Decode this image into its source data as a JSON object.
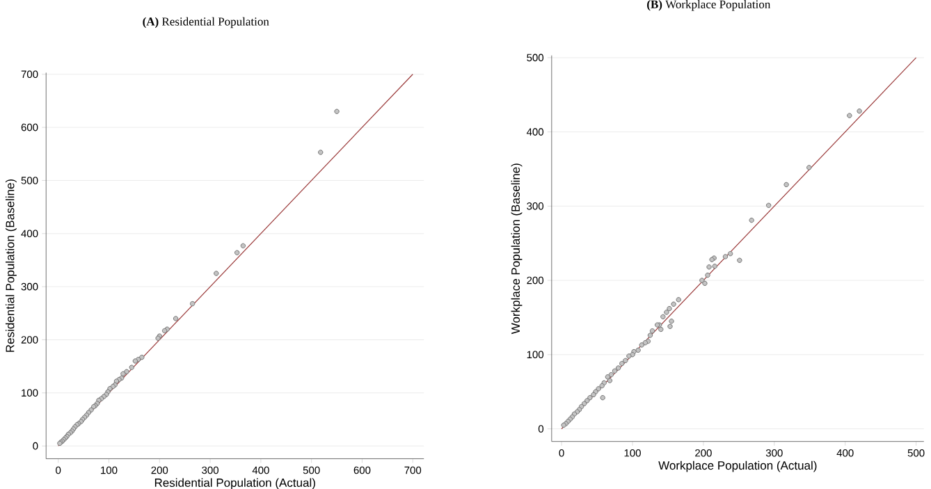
{
  "chart_data": [
    {
      "type": "scatter",
      "title": "**(A)** Residential Population",
      "xlabel": "Residential Population (Actual)",
      "ylabel": "Residential Population (Baseline)",
      "xlim": [
        -24,
        722
      ],
      "ylim": [
        -24,
        703
      ],
      "xticks": [
        0,
        100,
        200,
        300,
        400,
        500,
        600,
        700
      ],
      "yticks": [
        0,
        100,
        200,
        300,
        400,
        500,
        600,
        700
      ],
      "grid": "y",
      "marker": "circle",
      "series": [
        {
          "color": "#c4c4c4",
          "x": [
            550,
            518,
            365,
            353,
            312,
            265,
            232,
            215,
            210,
            200,
            197,
            165,
            158,
            152,
            145,
            135,
            128,
            125,
            120,
            115,
            112,
            108,
            102,
            98,
            95,
            90,
            85,
            80,
            77,
            73,
            70,
            65,
            60,
            56,
            52,
            48,
            45,
            40,
            37,
            33,
            30,
            27,
            24,
            20,
            17,
            14,
            11,
            8,
            5,
            3
          ],
          "values": [
            630,
            553,
            377,
            364,
            325,
            268,
            240,
            220,
            217,
            207,
            203,
            167,
            163,
            160,
            148,
            140,
            136,
            128,
            125,
            122,
            115,
            112,
            108,
            102,
            97,
            93,
            89,
            86,
            80,
            76,
            74,
            68,
            63,
            58,
            54,
            50,
            46,
            42,
            40,
            36,
            32,
            28,
            25,
            22,
            18,
            15,
            12,
            9,
            7,
            5
          ]
        },
        {
          "type": "line",
          "color": "#9b3a3a",
          "marker": "none",
          "x": [
            0,
            700
          ],
          "values": [
            0,
            700
          ]
        }
      ]
    },
    {
      "type": "scatter",
      "title": "**(B)** Workplace Population",
      "xlabel": "Workplace Population (Actual)",
      "ylabel": "Workplace Population (Baseline)",
      "xlim": [
        -14,
        511
      ],
      "ylim": [
        -17,
        503
      ],
      "xticks": [
        0,
        100,
        200,
        300,
        400,
        500
      ],
      "yticks": [
        0,
        100,
        200,
        300,
        400,
        500
      ],
      "grid": "y",
      "marker": "circle",
      "series": [
        {
          "color": "#c4c4c4",
          "x": [
            406,
            420,
            349,
            317,
            292,
            268,
            251,
            238,
            231,
            215,
            212,
            216,
            208,
            206,
            198,
            202,
            165,
            158,
            152,
            155,
            153,
            148,
            143,
            138,
            135,
            140,
            128,
            125,
            122,
            118,
            113,
            108,
            102,
            100,
            95,
            90,
            85,
            80,
            75,
            70,
            68,
            65,
            60,
            58,
            57,
            52,
            48,
            45,
            40,
            36,
            32,
            28,
            25,
            22,
            18,
            15,
            12,
            9,
            6,
            3
          ],
          "values": [
            422,
            428,
            352,
            329,
            301,
            281,
            227,
            236,
            232,
            230,
            228,
            219,
            218,
            207,
            200,
            196,
            174,
            168,
            162,
            145,
            138,
            157,
            151,
            140,
            140,
            134,
            132,
            126,
            118,
            116,
            113,
            106,
            104,
            100,
            98,
            92,
            88,
            82,
            78,
            73,
            65,
            70,
            62,
            42,
            58,
            54,
            50,
            46,
            42,
            38,
            34,
            30,
            26,
            23,
            20,
            16,
            13,
            10,
            7,
            5
          ]
        },
        {
          "type": "line",
          "color": "#9b3a3a",
          "marker": "none",
          "x": [
            0,
            500
          ],
          "values": [
            0,
            500
          ]
        }
      ]
    }
  ]
}
